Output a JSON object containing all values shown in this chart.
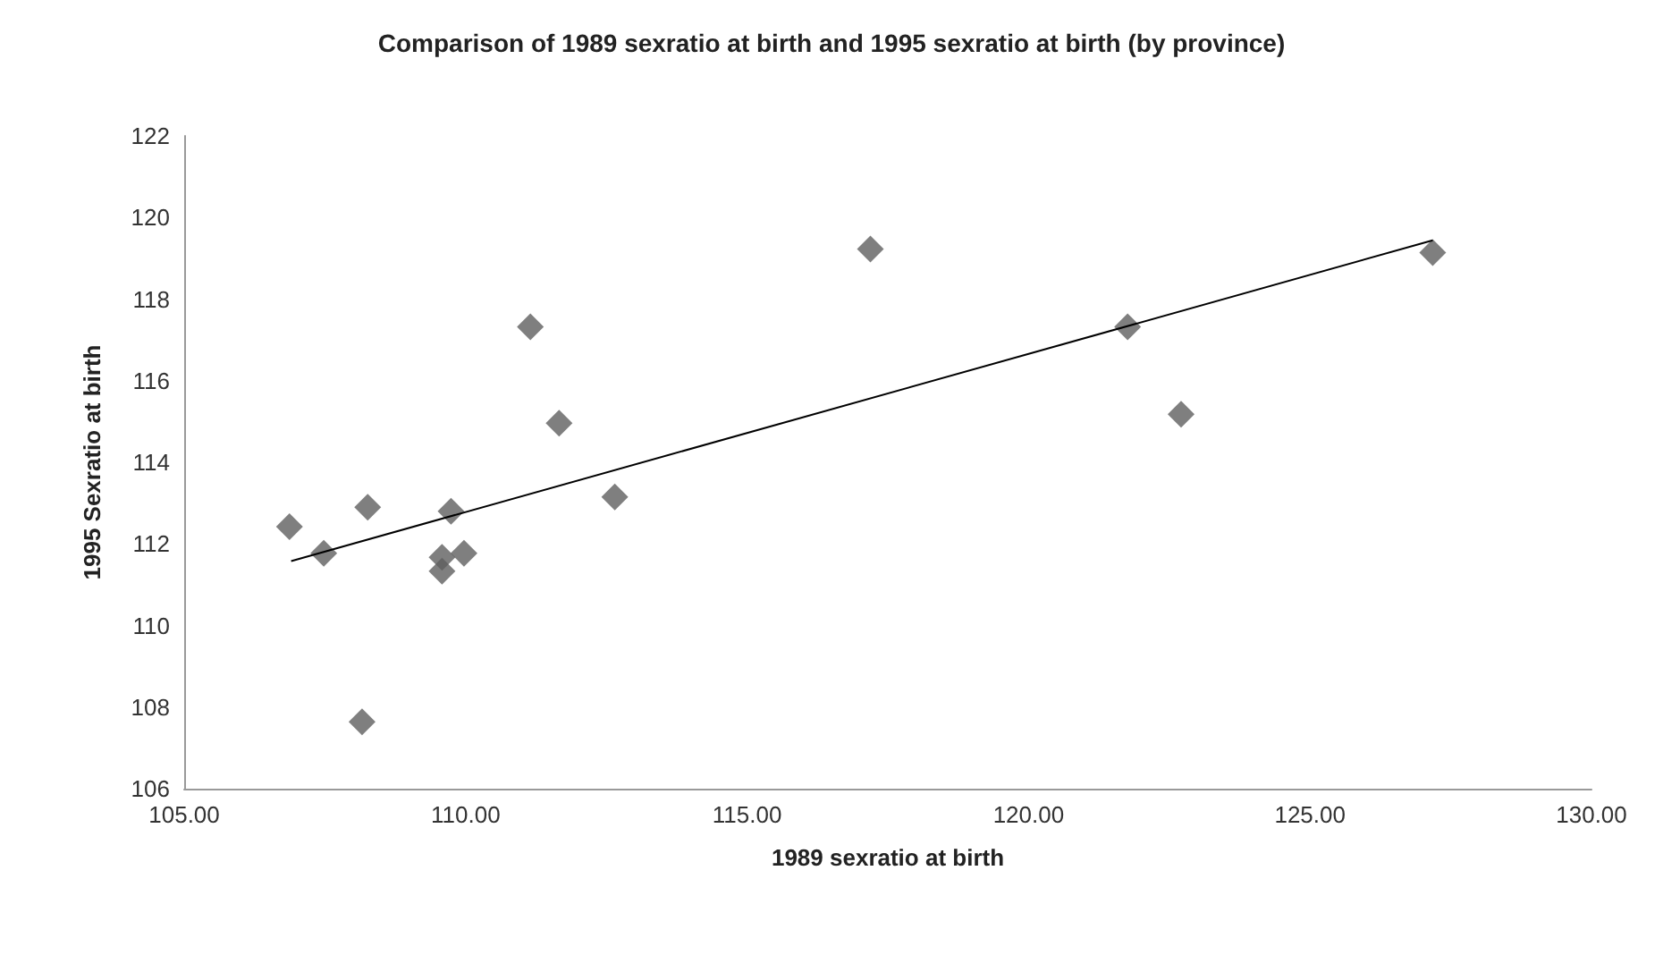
{
  "chart_data": {
    "type": "scatter",
    "title": "Comparison of 1989 sexratio at birth and 1995 sexratio at birth (by province)",
    "xlabel": "1989 sexratio at birth",
    "ylabel": "1995 Sexratio at birth",
    "series": [
      {
        "color": "#5f5f5f",
        "marker": "diamond",
        "x": [
          106.87,
          107.48,
          108.26,
          108.16,
          109.74,
          109.58,
          109.58,
          109.97,
          111.15,
          111.66,
          112.65,
          117.19,
          121.76,
          122.71,
          127.18
        ],
        "values": [
          112.42,
          111.77,
          112.9,
          107.64,
          112.8,
          111.67,
          111.33,
          111.77,
          117.32,
          114.96,
          113.15,
          119.23,
          117.32,
          115.18,
          119.14
        ]
      },
      {
        "type": "line",
        "color": "#000000",
        "marker": "none",
        "line_style": "solid",
        "x": [
          106.9,
          127.18
        ],
        "values": [
          111.58,
          119.44
        ]
      }
    ],
    "xlim": [
      105,
      130
    ],
    "xticks": [
      {
        "value": 105,
        "label": "105.00"
      },
      {
        "value": 110,
        "label": "110.00"
      },
      {
        "value": 115,
        "label": "115.00"
      },
      {
        "value": 120,
        "label": "120.00"
      },
      {
        "value": 125,
        "label": "125.00"
      },
      {
        "value": 130,
        "label": "130.00"
      }
    ],
    "ylim": [
      106,
      122
    ],
    "yticks": [
      106,
      108,
      110,
      112,
      114,
      116,
      118,
      120,
      122
    ],
    "grid": false
  }
}
